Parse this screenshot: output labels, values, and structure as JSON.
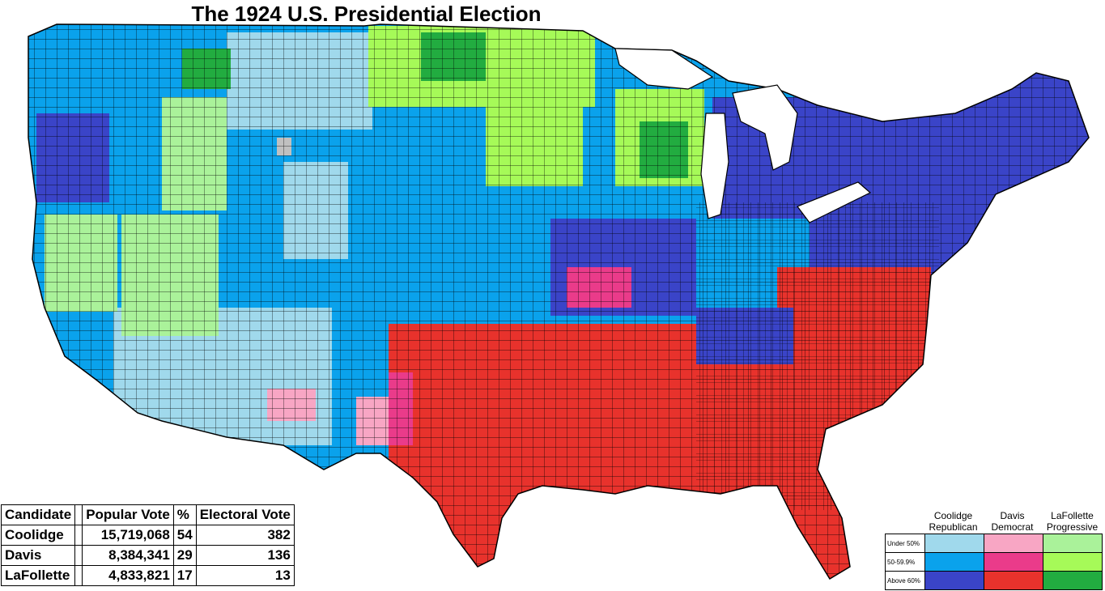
{
  "title": "The 1924 U.S. Presidential Election",
  "colors": {
    "rep_under50": "#a0d9ec",
    "rep_50_60": "#0aa2ec",
    "rep_above60": "#3a44c8",
    "dem_under50": "#f8a6c4",
    "dem_50_60": "#ea3b8a",
    "dem_above60": "#e8322c",
    "pro_under50": "#aaf29a",
    "pro_50_60": "#a6fa58",
    "pro_above60": "#22ac40",
    "no_data": "#c0c0c0",
    "borders": "#000000"
  },
  "results": {
    "headers": [
      "Candidate",
      "Popular Vote",
      "%",
      "Electoral Vote"
    ],
    "rows": [
      {
        "candidate": "Coolidge",
        "popular_vote": "15,719,068",
        "percent": "54",
        "electoral_vote": "382"
      },
      {
        "candidate": "Davis",
        "popular_vote": "8,384,341",
        "percent": "29",
        "electoral_vote": "136"
      },
      {
        "candidate": "LaFollette",
        "popular_vote": "4,833,821",
        "percent": "17",
        "electoral_vote": "13"
      }
    ]
  },
  "legend": {
    "columns": [
      {
        "line1": "Coolidge",
        "line2": "Republican"
      },
      {
        "line1": "Davis",
        "line2": "Democrat"
      },
      {
        "line1": "LaFollette",
        "line2": "Progressive"
      }
    ],
    "rows": [
      "Under 50%",
      "50-59.9%",
      "Above 60%"
    ]
  }
}
